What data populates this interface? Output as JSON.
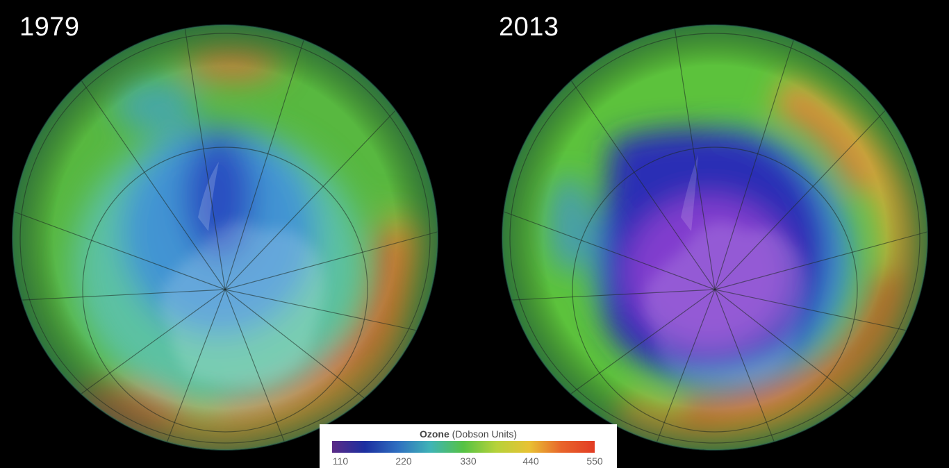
{
  "panels": [
    {
      "year": "1979",
      "ozone_hole": "small"
    },
    {
      "year": "2013",
      "ozone_hole": "large"
    }
  ],
  "legend": {
    "title_bold": "Ozone",
    "title_rest": " (Dobson Units)",
    "ticks": [
      "110",
      "220",
      "330",
      "440",
      "550"
    ],
    "colors": [
      "#5b2a86",
      "#1c2fa0",
      "#2f6fc0",
      "#3fb4b6",
      "#55c244",
      "#b6d23a",
      "#e8c234",
      "#e8642a",
      "#e23c24"
    ]
  },
  "colors": {
    "background": "#000000",
    "very_low": "#8b3fd0",
    "low": "#2a2fb5",
    "mid_low": "#3f8fd8",
    "mid": "#5cc2a8",
    "normal": "#5cc23c",
    "high": "#d8a83a",
    "very_high": "#d2402a"
  }
}
